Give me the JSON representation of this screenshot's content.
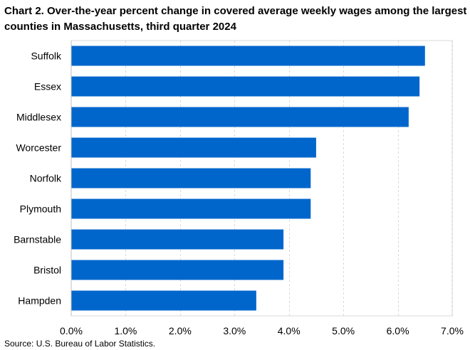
{
  "title": "Chart 2. Over-the-year percent change in covered average weekly wages among the largest counties in Massachusetts, third quarter 2024",
  "source": "Source: U.S. Bureau of Labor Statistics.",
  "colors": {
    "bar": "#0066CC",
    "grid": "#d9d9d9",
    "axis": "#bfbfbf"
  },
  "chart_data": {
    "type": "bar",
    "orientation": "horizontal",
    "categories": [
      "Suffolk",
      "Essex",
      "Middlesex",
      "Worcester",
      "Norfolk",
      "Plymouth",
      "Barnstable",
      "Bristol",
      "Hampden"
    ],
    "values": [
      6.5,
      6.4,
      6.2,
      4.5,
      4.4,
      4.4,
      3.9,
      3.9,
      3.4
    ],
    "unit": "%",
    "xlim": [
      0,
      7
    ],
    "xticks": [
      0,
      1,
      2,
      3,
      4,
      5,
      6,
      7
    ],
    "xtick_labels": [
      "0.0%",
      "1.0%",
      "2.0%",
      "3.0%",
      "4.0%",
      "5.0%",
      "6.0%",
      "7.0%"
    ],
    "grid": true,
    "legend": false
  }
}
